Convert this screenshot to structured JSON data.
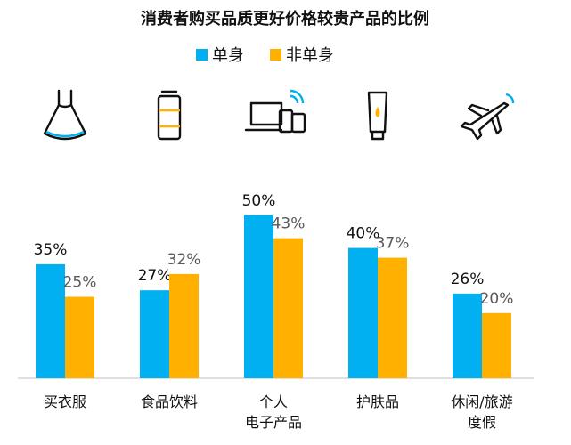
{
  "chart_data": {
    "type": "bar",
    "title": "消费者购买品质更好价格较贵产品的比例",
    "categories": [
      "买衣服",
      "食品饮料",
      "个人\n电子产品",
      "护肤品",
      "休闲/旅游\n度假"
    ],
    "series": [
      {
        "name": "单身",
        "color": "#00b0f0",
        "values": [
          35,
          27,
          50,
          40,
          26
        ],
        "value_labels": [
          "35%",
          "27%",
          "50%",
          "40%",
          "26%"
        ]
      },
      {
        "name": "非单身",
        "color": "#ffb000",
        "values": [
          25,
          32,
          43,
          37,
          20
        ],
        "value_labels": [
          "25%",
          "32%",
          "43%",
          "37%",
          "20%"
        ]
      }
    ]
  }
}
